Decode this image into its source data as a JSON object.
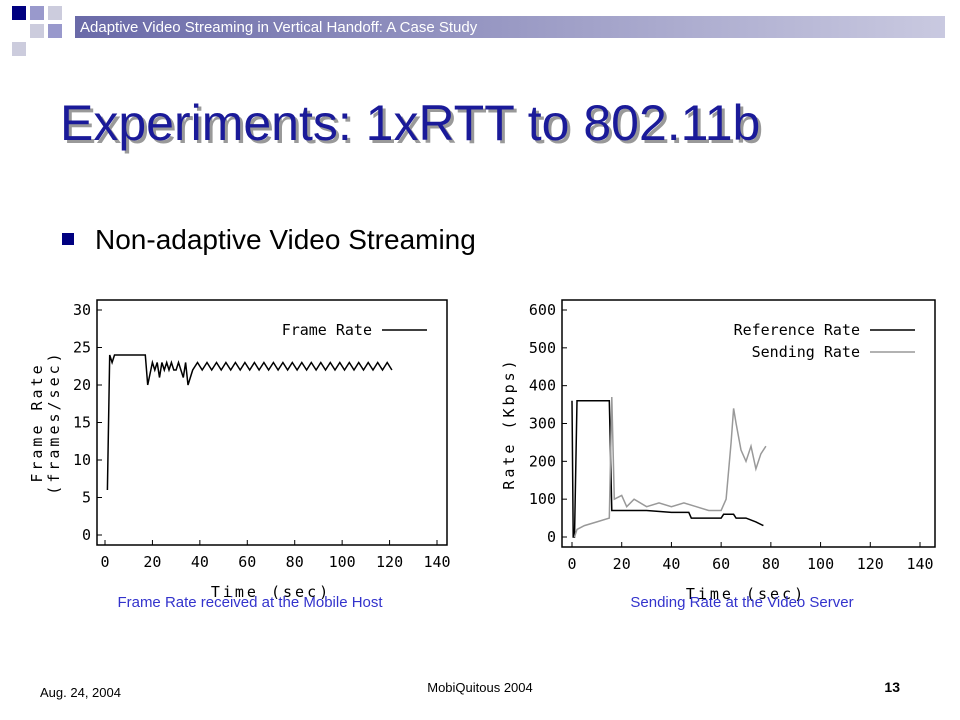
{
  "header": "Adaptive Video Streaming in Vertical Handoff: A Case Study",
  "title": "Experiments: 1xRTT to 802.11b",
  "bullet": "Non-adaptive Video Streaming",
  "captions": [
    "Frame Rate received at the Mobile Host",
    "Sending Rate at the Video Server"
  ],
  "footer": {
    "date": "Aug. 24,  2004",
    "venue": "MobiQuitous 2004",
    "page": "13"
  },
  "chart_data": [
    {
      "type": "line",
      "xlabel": "Time (sec)",
      "ylabel": [
        "Frame Rate",
        "(frames/sec)"
      ],
      "xlim": [
        0,
        140
      ],
      "ylim": [
        0,
        30
      ],
      "xticks": [
        0,
        20,
        40,
        60,
        80,
        100,
        120,
        140
      ],
      "yticks": [
        0,
        5,
        10,
        15,
        20,
        25,
        30
      ],
      "grid": false,
      "legend": "upper right",
      "series": [
        {
          "name": "Frame Rate",
          "color": "#000000",
          "x": [
            1,
            2,
            3,
            4,
            10,
            17,
            18,
            20,
            21,
            22,
            23,
            24,
            25,
            26,
            27,
            28,
            29,
            30,
            31,
            32,
            33,
            34,
            35,
            37,
            39,
            41,
            43,
            45,
            47,
            49,
            51,
            53,
            55,
            57,
            59,
            61,
            63,
            65,
            67,
            69,
            71,
            73,
            75,
            77,
            79,
            81,
            83,
            85,
            87,
            89,
            91,
            93,
            95,
            97,
            99,
            101,
            103,
            105,
            107,
            109,
            111,
            113,
            115,
            117,
            119,
            121
          ],
          "values": [
            6,
            24,
            23,
            24,
            24,
            24,
            20,
            23,
            22,
            23,
            21,
            23,
            22,
            23,
            22,
            23,
            22,
            22,
            23,
            22,
            21,
            23,
            20,
            22,
            23,
            22,
            23,
            22,
            23,
            22,
            23,
            22,
            23,
            22,
            23,
            22,
            23,
            22,
            23,
            22,
            23,
            22,
            23,
            22,
            23,
            22,
            23,
            22,
            23,
            22,
            23,
            22,
            23,
            22,
            23,
            22,
            23,
            22,
            23,
            22,
            23,
            22,
            23,
            22,
            23,
            22
          ]
        }
      ]
    },
    {
      "type": "line",
      "xlabel": "Time (sec)",
      "ylabel": [
        "Rate (Kbps)"
      ],
      "xlim": [
        0,
        140
      ],
      "ylim": [
        0,
        600
      ],
      "xticks": [
        0,
        20,
        40,
        60,
        80,
        100,
        120,
        140
      ],
      "yticks": [
        0,
        100,
        200,
        300,
        400,
        500,
        600
      ],
      "grid": false,
      "legend": "upper right",
      "series": [
        {
          "name": "Reference Rate",
          "color": "#000000",
          "x": [
            0,
            0.5,
            1,
            2,
            13,
            15,
            16,
            20,
            30,
            40,
            47,
            48,
            60,
            61,
            65,
            66,
            70,
            74,
            77
          ],
          "values": [
            360,
            0,
            0,
            360,
            360,
            360,
            70,
            70,
            70,
            65,
            65,
            50,
            50,
            60,
            60,
            50,
            50,
            40,
            30
          ]
        },
        {
          "name": "Sending Rate",
          "color": "#999999",
          "x": [
            1,
            2,
            5,
            10,
            15,
            16,
            17,
            20,
            22,
            25,
            30,
            35,
            40,
            45,
            50,
            55,
            60,
            62,
            64,
            65,
            66,
            68,
            70,
            72,
            74,
            76,
            78
          ],
          "values": [
            0,
            20,
            30,
            40,
            50,
            370,
            100,
            110,
            80,
            100,
            80,
            90,
            80,
            90,
            80,
            70,
            70,
            100,
            250,
            340,
            300,
            230,
            200,
            240,
            180,
            220,
            240
          ]
        }
      ]
    }
  ]
}
